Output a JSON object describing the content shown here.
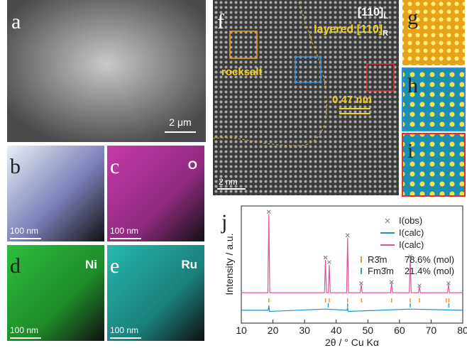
{
  "panels": {
    "a": {
      "label": "a",
      "scale": "2 μm"
    },
    "b": {
      "label": "b",
      "scale": "100 nm"
    },
    "c": {
      "label": "c",
      "element": "O",
      "scale": "100 nm"
    },
    "d": {
      "label": "d",
      "element": "Ni",
      "scale": "100 nm"
    },
    "e": {
      "label": "e",
      "element": "Ru",
      "scale": "100 nm"
    },
    "f": {
      "label": "f",
      "zone1": "[110]",
      "zone1_sub": "L",
      "zone2": "layered [110]",
      "zone2_sub": "R",
      "region": "rocksalt",
      "spacing": "0.47 nm",
      "scale": "2 nm"
    },
    "g": {
      "label": "g"
    },
    "h": {
      "label": "h"
    },
    "i": {
      "label": "i"
    }
  },
  "chart_data": {
    "type": "line",
    "panel": "j",
    "xlabel": "2θ / °  Cu Kα",
    "ylabel": "Intensity / a.u.",
    "xlim": [
      10,
      80
    ],
    "xticks": [
      10,
      20,
      30,
      40,
      50,
      60,
      70,
      80
    ],
    "ylim": [
      0,
      100
    ],
    "series": [
      {
        "name": "I(obs)",
        "color": "#777777",
        "style": "marker",
        "x": [
          18.7,
          36.6,
          37.8,
          43.6,
          47.9,
          57.5,
          63.4,
          66.3,
          75.5
        ],
        "values": [
          95,
          56,
          52,
          75,
          34,
          35,
          57,
          32,
          34
        ]
      },
      {
        "name": "I(calc)",
        "color": "#1f8fd0",
        "style": "line",
        "x": [
          10,
          18.5,
          18.7,
          18.9,
          36.6,
          43.4,
          43.6,
          43.8,
          63.4,
          80
        ],
        "values": [
          11,
          11,
          15,
          10,
          12,
          11,
          13,
          10,
          12,
          11
        ]
      },
      {
        "name": "I(calc)",
        "color": "#e0559a",
        "style": "line",
        "x": [
          10,
          18.4,
          18.7,
          19.0,
          36.3,
          36.6,
          36.9,
          37.5,
          37.8,
          38.1,
          43.3,
          43.6,
          43.9,
          47.6,
          47.9,
          48.2,
          57.2,
          57.5,
          57.8,
          63.1,
          63.4,
          63.7,
          66.0,
          66.3,
          66.6,
          75.2,
          75.5,
          75.8,
          80
        ],
        "values": [
          26,
          26,
          93,
          26,
          26,
          54,
          26,
          26,
          50,
          26,
          26,
          73,
          26,
          26,
          33,
          26,
          26,
          34,
          26,
          26,
          55,
          26,
          26,
          31,
          26,
          26,
          33,
          26,
          26
        ]
      }
    ],
    "phases": [
      {
        "name": "R3̄m",
        "fraction": "78.6% (mol)",
        "color": "#f0932b",
        "positions": [
          18.7,
          36.6,
          37.8,
          43.6,
          48.0,
          57.5,
          63.4,
          66.3,
          74.8,
          75.6
        ]
      },
      {
        "name": "Fm3̄m",
        "fraction": "21.4% (mol)",
        "color": "#2aa3c4",
        "positions": [
          37.5,
          43.6,
          63.4,
          75.6
        ]
      }
    ]
  }
}
